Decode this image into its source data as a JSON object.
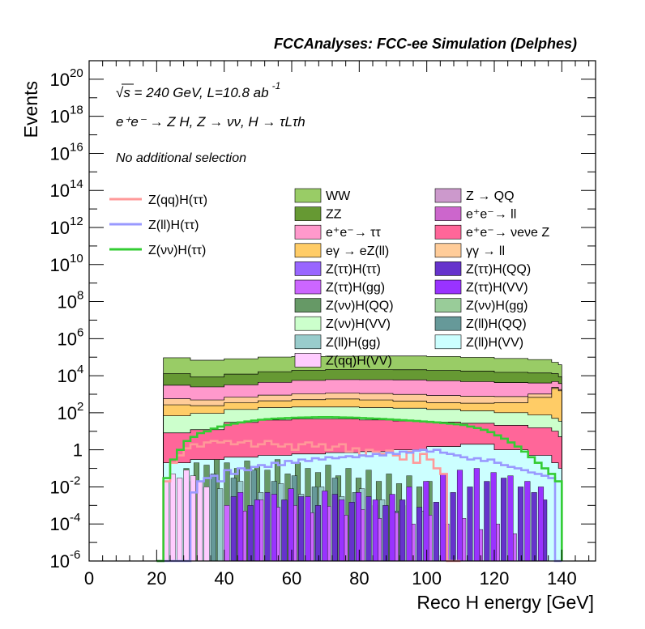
{
  "chart_data": {
    "type": "histogram",
    "header": "FCCAnalyses: FCC-ee Simulation (Delphes)",
    "annotations": {
      "energy_lumi": "√s = 240 GeV, L=10.8 ab",
      "energy_lumi_exp": "-1",
      "process": "e⁺e⁻ → Z H, Z → νν, H → τLτh",
      "selection": "No additional selection"
    },
    "xlabel": "Reco H energy [GeV]",
    "ylabel": "Events",
    "xlim": [
      0,
      150
    ],
    "ylim": [
      1e-06,
      1e+21
    ],
    "y_scale": "log",
    "x_ticks": [
      "0",
      "20",
      "40",
      "60",
      "80",
      "100",
      "120",
      "140"
    ],
    "y_ticks": [
      {
        "base": "10",
        "exp": "20"
      },
      {
        "base": "10",
        "exp": "18"
      },
      {
        "base": "10",
        "exp": "16"
      },
      {
        "base": "10",
        "exp": "14"
      },
      {
        "base": "10",
        "exp": "12"
      },
      {
        "base": "10",
        "exp": "10"
      },
      {
        "base": "10",
        "exp": "8"
      },
      {
        "base": "10",
        "exp": "6"
      },
      {
        "base": "10",
        "exp": "4"
      },
      {
        "base": "10",
        "exp": "2"
      },
      {
        "base": "1",
        "exp": ""
      },
      {
        "base": "10",
        "exp": "-2"
      },
      {
        "base": "10",
        "exp": "-4"
      },
      {
        "base": "10",
        "exp": "-6"
      }
    ],
    "signal_legend": [
      {
        "name": "Z(qq)H(ττ)",
        "color": "#ff9999"
      },
      {
        "name": "Z(ll)H(ττ)",
        "color": "#9999ff"
      },
      {
        "name": "Z(νν)H(ττ)",
        "color": "#33cc33"
      }
    ],
    "background_legend": [
      {
        "name": "WW",
        "color": "#99cc66"
      },
      {
        "name": "Z → QQ",
        "color": "#cc99cc"
      },
      {
        "name": "ZZ",
        "color": "#669933"
      },
      {
        "name": "e⁺e⁻→ ll",
        "color": "#cc66cc"
      },
      {
        "name": "e⁺e⁻→ ττ",
        "color": "#ff99cc"
      },
      {
        "name": "e⁺e⁻→ νeνe Z",
        "color": "#ff6699"
      },
      {
        "name": "eγ → eZ(ll)",
        "color": "#ffcc66"
      },
      {
        "name": "γγ → ll",
        "color": "#ffcc99"
      },
      {
        "name": "Z(ττ)H(ττ)",
        "color": "#9966ff"
      },
      {
        "name": "Z(ττ)H(QQ)",
        "color": "#6633cc"
      },
      {
        "name": "Z(ττ)H(gg)",
        "color": "#cc66ff"
      },
      {
        "name": "Z(ττ)H(VV)",
        "color": "#9933ff"
      },
      {
        "name": "Z(νν)H(QQ)",
        "color": "#669966"
      },
      {
        "name": "Z(νν)H(gg)",
        "color": "#99cc99"
      },
      {
        "name": "Z(νν)H(VV)",
        "color": "#ccffcc"
      },
      {
        "name": "Z(ll)H(QQ)",
        "color": "#669999"
      },
      {
        "name": "Z(ll)H(gg)",
        "color": "#99cccc"
      },
      {
        "name": "Z(ll)H(VV)",
        "color": "#ccffff"
      },
      {
        "name": "Z(qq)H(VV)",
        "color": "#ffccff"
      }
    ],
    "stack_layers": [
      {
        "name": "WW",
        "color": "#99cc66",
        "x": [
          22,
          30,
          40,
          50,
          60,
          70,
          80,
          90,
          100,
          110,
          120,
          130,
          137,
          139
        ],
        "y": [
          80000,
          60000,
          70000,
          85000,
          90000,
          92000,
          95000,
          95000,
          90000,
          80000,
          70000,
          60000,
          40000,
          30000
        ]
      },
      {
        "name": "ZZ",
        "color": "#669933",
        "x": [
          22,
          30,
          40,
          50,
          60,
          70,
          80,
          90,
          100,
          110,
          120,
          130,
          137,
          139
        ],
        "y": [
          10000,
          6000,
          9000,
          12000,
          14000,
          15000,
          15000,
          15000,
          14000,
          13000,
          11000,
          10000,
          8000,
          5000
        ]
      },
      {
        "name": "e⁺e⁻→ ττ",
        "color": "#ff99cc",
        "x": [
          22,
          30,
          40,
          50,
          60,
          70,
          80,
          90,
          100,
          110,
          120,
          130,
          137,
          139
        ],
        "y": [
          2500,
          2000,
          2500,
          3500,
          4500,
          5000,
          5000,
          5000,
          4500,
          4000,
          3500,
          3000,
          2500,
          2000
        ]
      },
      {
        "name": "γγ → ll",
        "color": "#ffcc99",
        "x": [
          22,
          30,
          40,
          50,
          60,
          70,
          80,
          90,
          100,
          110,
          120,
          130,
          137,
          139
        ],
        "y": [
          300,
          250,
          350,
          450,
          550,
          600,
          600,
          550,
          500,
          450,
          400,
          350,
          300,
          250
        ]
      },
      {
        "name": "eγ → eZ(ll)",
        "color": "#ffcc66",
        "x": [
          22,
          30,
          40,
          50,
          60,
          70,
          80,
          90,
          100,
          110,
          120,
          130,
          137,
          139
        ],
        "y": [
          200,
          150,
          200,
          250,
          300,
          350,
          300,
          250,
          200,
          200,
          250,
          600,
          2000,
          1500
        ]
      },
      {
        "name": "Z(νν)H(VV)",
        "color": "#ccffcc",
        "x": [
          22,
          30,
          40,
          50,
          60,
          70,
          80,
          90,
          100,
          110,
          120,
          130,
          137,
          139
        ],
        "y": [
          60,
          80,
          120,
          150,
          160,
          160,
          150,
          140,
          120,
          100,
          80,
          60,
          40,
          30
        ]
      },
      {
        "name": "e⁺e⁻→ νeνe Z",
        "color": "#ff6699",
        "x": [
          22,
          30,
          40,
          50,
          60,
          70,
          80,
          90,
          100,
          110,
          120,
          130,
          137,
          139
        ],
        "y": [
          8,
          12,
          30,
          40,
          45,
          45,
          40,
          35,
          30,
          25,
          20,
          15,
          10,
          5
        ]
      },
      {
        "name": "Z(ll)H(VV)",
        "color": "#ccffff",
        "x": [
          22,
          30,
          40,
          50,
          60,
          70,
          80,
          90,
          100,
          110,
          120,
          130,
          137,
          139
        ],
        "y": [
          0.2,
          0.3,
          0.4,
          0.5,
          0.6,
          0.7,
          0.8,
          1.0,
          1.5,
          2.0,
          1.0,
          0.5,
          0.2,
          0.1
        ]
      }
    ],
    "signal_series": [
      {
        "name": "Z(qq)H(ττ)",
        "color": "#ff9999",
        "x": [
          20,
          22,
          24,
          26,
          28,
          30,
          32,
          34,
          36,
          38,
          40,
          42,
          44,
          46,
          48,
          50,
          52,
          54,
          56,
          58,
          60,
          62,
          64,
          66,
          68,
          70,
          72,
          74,
          76,
          78,
          80,
          82,
          84,
          86,
          88,
          90,
          92,
          94,
          96,
          98,
          100,
          102,
          104,
          106,
          108,
          110
        ],
        "y": [
          1e-06,
          0.02,
          0.2,
          0.5,
          1.2,
          2,
          1.5,
          2.5,
          3,
          2.5,
          3,
          2,
          2.5,
          3,
          1.5,
          2,
          3,
          2,
          1.5,
          2,
          1,
          2,
          2.5,
          1.5,
          2,
          1,
          1.5,
          2,
          0.8,
          1.2,
          0.5,
          1,
          0.8,
          0.6,
          0.9,
          0.5,
          0.3,
          0.8,
          0.2,
          0.6,
          0.3,
          0.1,
          0.05,
          1e-06,
          1e-06,
          1e-06
        ]
      },
      {
        "name": "Z(ll)H(ττ)",
        "color": "#9999ff",
        "x": [
          20,
          28,
          30,
          32,
          34,
          36,
          38,
          40,
          42,
          44,
          46,
          48,
          50,
          52,
          54,
          56,
          58,
          60,
          62,
          64,
          66,
          68,
          70,
          72,
          74,
          76,
          78,
          80,
          82,
          84,
          86,
          88,
          90,
          92,
          94,
          96,
          98,
          100,
          102,
          104,
          106,
          108,
          110,
          112,
          114,
          116,
          118,
          120,
          122,
          124,
          126,
          128,
          130,
          132,
          134,
          136,
          138,
          140
        ],
        "y": [
          1e-06,
          1e-06,
          0.005,
          0.02,
          0.03,
          0.04,
          0.02,
          0.08,
          0.05,
          0.1,
          0.08,
          0.12,
          0.15,
          0.12,
          0.2,
          0.15,
          0.25,
          0.2,
          0.3,
          0.25,
          0.35,
          0.3,
          0.4,
          0.35,
          0.4,
          0.45,
          0.4,
          0.5,
          0.45,
          0.6,
          0.5,
          0.7,
          0.6,
          0.8,
          0.7,
          0.9,
          1.0,
          0.8,
          1.0,
          0.7,
          0.6,
          0.5,
          0.4,
          0.3,
          0.35,
          0.25,
          0.3,
          0.2,
          0.15,
          0.12,
          0.1,
          0.08,
          0.06,
          0.05,
          0.04,
          0.03,
          1e-06,
          1e-06
        ]
      },
      {
        "name": "Z(νν)H(ττ)",
        "color": "#33cc33",
        "x": [
          20,
          22,
          24,
          26,
          28,
          30,
          32,
          34,
          36,
          38,
          40,
          42,
          44,
          46,
          48,
          50,
          52,
          54,
          56,
          58,
          60,
          62,
          64,
          66,
          68,
          70,
          72,
          74,
          76,
          78,
          80,
          82,
          84,
          86,
          88,
          90,
          92,
          94,
          96,
          98,
          100,
          102,
          104,
          106,
          108,
          110,
          112,
          114,
          116,
          118,
          120,
          122,
          124,
          126,
          128,
          130,
          132,
          134,
          136,
          138,
          140
        ],
        "y": [
          1e-06,
          0.03,
          0.3,
          1,
          3,
          5,
          8,
          10,
          14,
          18,
          22,
          26,
          30,
          34,
          38,
          42,
          45,
          48,
          50,
          52,
          54,
          55,
          56,
          57,
          58,
          58,
          57,
          56,
          55,
          54,
          52,
          50,
          48,
          46,
          44,
          42,
          40,
          38,
          36,
          34,
          32,
          30,
          28,
          26,
          24,
          22,
          18,
          15,
          12,
          9,
          6,
          4,
          2.5,
          1.5,
          0.8,
          0.4,
          0.2,
          0.1,
          0.05,
          0.02,
          1e-06
        ]
      }
    ],
    "spikes": [
      {
        "color": "#669966",
        "x": [
          28,
          31,
          34,
          37,
          40,
          43,
          46,
          49,
          52,
          55,
          58,
          61,
          64,
          67,
          70,
          73,
          76,
          79,
          82,
          85,
          88,
          91,
          94,
          97,
          100
        ],
        "y": [
          0.1,
          0.2,
          0.15,
          0.3,
          0.2,
          0.1,
          0.25,
          0.12,
          0.08,
          0.3,
          0.05,
          0.2,
          0.1,
          0.06,
          0.15,
          0.04,
          0.1,
          0.03,
          0.08,
          0.02,
          0.05,
          0.015,
          0.04,
          0.01,
          0.02
        ]
      },
      {
        "color": "#669999",
        "x": [
          30,
          36,
          42,
          48,
          54,
          60,
          66,
          72,
          78,
          84,
          90
        ],
        "y": [
          0.02,
          0.05,
          0.03,
          0.08,
          0.02,
          0.04,
          0.01,
          0.03,
          0.005,
          0.001,
          0.0005
        ]
      },
      {
        "color": "#99cccc",
        "x": [
          32,
          38,
          44,
          50,
          56,
          62,
          68,
          74,
          80,
          86,
          92,
          98
        ],
        "y": [
          0.01,
          0.008,
          0.02,
          0.005,
          0.015,
          0.004,
          0.01,
          0.003,
          0.008,
          0.002,
          0.001,
          0.0005
        ]
      },
      {
        "color": "#cc66ff",
        "x": [
          40,
          45,
          50,
          55,
          60,
          65,
          70,
          75,
          80,
          85,
          90,
          95,
          100,
          105,
          110,
          115,
          120,
          125
        ],
        "y": [
          0.001,
          0.0005,
          0.002,
          0.0008,
          0.001,
          0.0004,
          0.0009,
          0.0003,
          0.0006,
          0.0002,
          0.0004,
          0.0001,
          0.0003,
          0.0001,
          0.0002,
          5e-05,
          0.0001,
          3e-05
        ]
      },
      {
        "color": "#6633cc",
        "x": [
          42,
          47,
          52,
          57,
          62,
          67,
          72,
          77,
          82,
          87,
          92,
          97,
          102,
          107,
          112,
          117,
          122,
          127,
          131,
          134
        ],
        "y": [
          0.003,
          0.001,
          0.005,
          0.002,
          0.003,
          0.001,
          0.004,
          0.0015,
          0.003,
          0.001,
          0.002,
          0.0008,
          0.0015,
          0.005,
          0.01,
          0.02,
          0.03,
          0.01,
          0.005,
          0.002
        ]
      },
      {
        "color": "#9933ff",
        "x": [
          44,
          49,
          54,
          59,
          64,
          69,
          74,
          79,
          84,
          89,
          94,
          99,
          104,
          109,
          114,
          119,
          124,
          129,
          133
        ],
        "y": [
          0.005,
          0.002,
          0.004,
          0.008,
          0.003,
          0.006,
          0.002,
          0.005,
          0.002,
          0.004,
          0.01,
          0.02,
          0.05,
          0.08,
          0.1,
          0.06,
          0.04,
          0.02,
          0.01
        ]
      },
      {
        "color": "#ffccff",
        "x": [
          22,
          24,
          26,
          28,
          30,
          32,
          34
        ],
        "y": [
          0.02,
          0.05,
          0.03,
          0.08,
          0.04,
          0.02,
          0.01
        ]
      }
    ]
  }
}
